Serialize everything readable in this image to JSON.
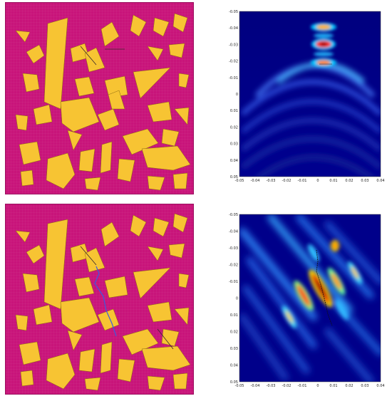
{
  "colors": {
    "matrix": "#C8147A",
    "matrix_grid": "#D85AA0",
    "inclusion": "#F7C433",
    "inclusion_edge": "#8A6A10",
    "crack_line": "#3A2A2A",
    "crack_blue": "#3B5BE0",
    "wave_low": "#00007F",
    "wave_high": "#7F0000"
  },
  "panels": {
    "top_left": {
      "kind": "aggregate-mesh",
      "icon": "mesh-icon"
    },
    "top_right": {
      "kind": "wave-field",
      "x_ticks": [
        "-0.05",
        "-0.04",
        "-0.03",
        "-0.02",
        "-0.01",
        "0",
        "0.01",
        "0.02",
        "0.03",
        "0.04"
      ],
      "y_ticks": [
        "-0.05",
        "-0.04",
        "-0.03",
        "-0.02",
        "-0.01",
        "0",
        "0.01",
        "0.02",
        "0.03",
        "0.04",
        "0.05"
      ]
    },
    "bottom_left": {
      "kind": "aggregate-mesh-cracked",
      "icon": "mesh-icon"
    },
    "bottom_right": {
      "kind": "wave-field",
      "x_ticks": [
        "-0.05",
        "-0.04",
        "-0.03",
        "-0.02",
        "-0.01",
        "0",
        "0.01",
        "0.02",
        "0.03",
        "0.04"
      ],
      "y_ticks": [
        "-0.05",
        "-0.04",
        "-0.03",
        "-0.02",
        "-0.01",
        "0",
        "0.01",
        "0.02",
        "0.03",
        "0.04",
        "0.05"
      ]
    }
  }
}
